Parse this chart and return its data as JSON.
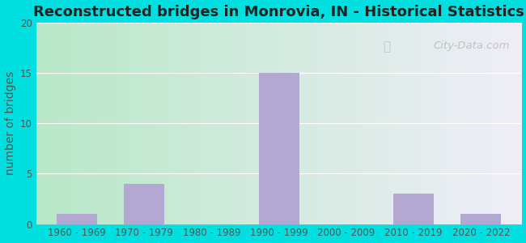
{
  "title": "Reconstructed bridges in Monrovia, IN - Historical Statistics",
  "categories": [
    "1960 - 1969",
    "1970 - 1979",
    "1980 - 1989",
    "1990 - 1999",
    "2000 - 2009",
    "2010 - 2019",
    "2020 - 2022"
  ],
  "values": [
    1,
    4,
    0,
    15,
    0,
    3,
    1
  ],
  "bar_color": "#b3a8d1",
  "ylabel": "number of bridges",
  "ylim": [
    0,
    20
  ],
  "yticks": [
    0,
    5,
    10,
    15,
    20
  ],
  "bg_color_topleft": "#b8e8c8",
  "bg_color_bottomright": "#f0eef8",
  "outer_bg": "#00e0e0",
  "title_fontsize": 13,
  "axis_label_fontsize": 10,
  "tick_fontsize": 8.5,
  "watermark_text": "City-Data.com",
  "title_color": "#222222",
  "tick_color": "#555555",
  "grid_color": "#ffffff",
  "bar_width": 0.6
}
